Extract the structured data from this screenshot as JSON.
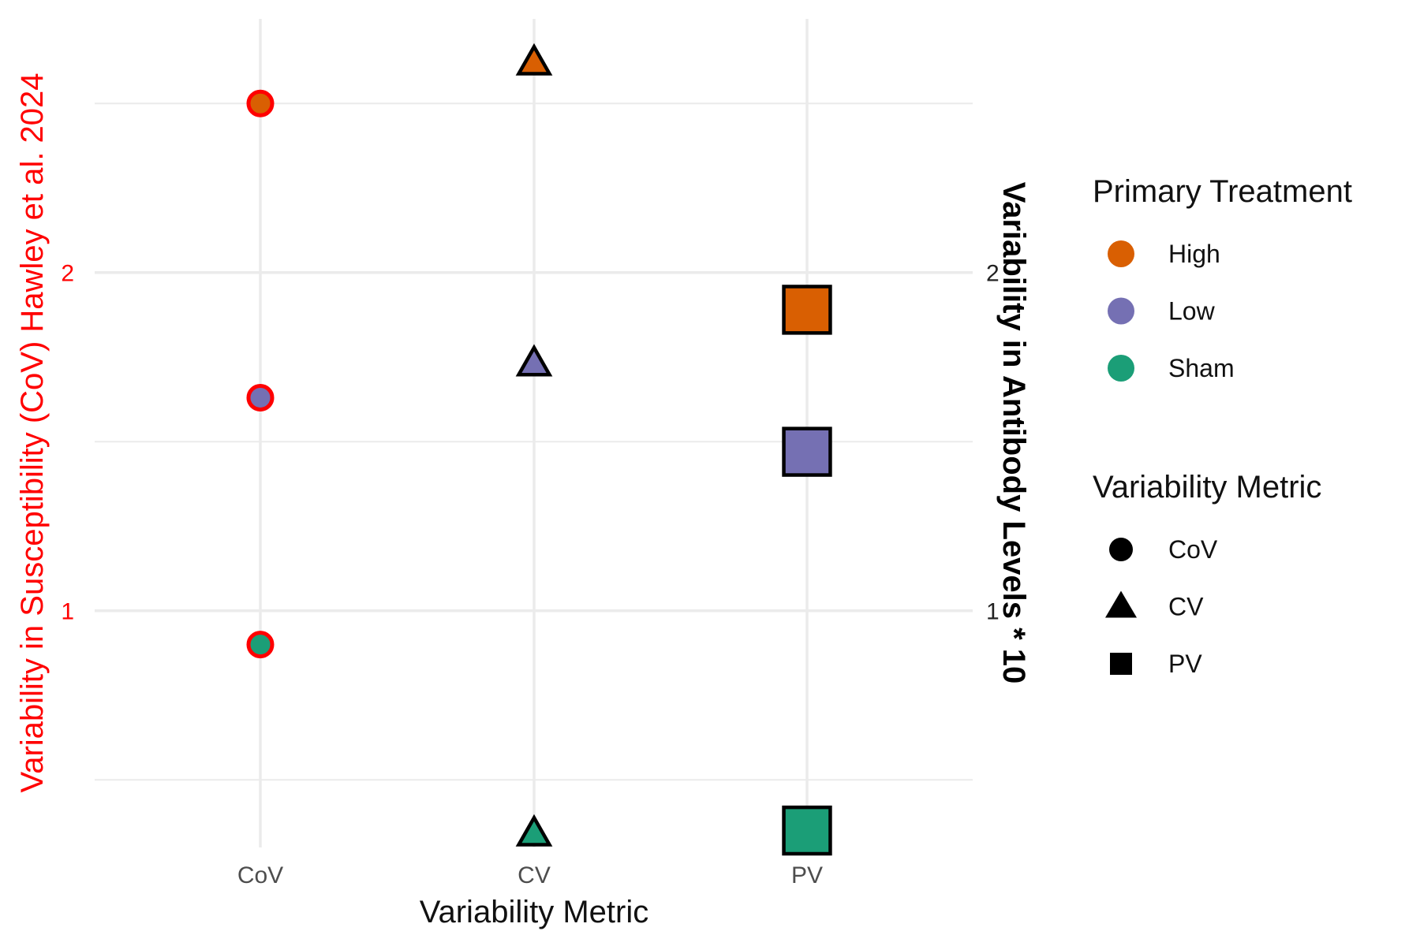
{
  "chart_data": {
    "type": "scatter",
    "categories": [
      "CoV",
      "CV",
      "PV"
    ],
    "xlabel": "Variability Metric",
    "ylabel_left": "Variability in Susceptibility (CoV) Hawley et al. 2024",
    "ylabel_right": "Variability in Antibody Levels * 10",
    "ylim": [
      0.3,
      2.75
    ],
    "y_ticks": [
      1,
      2
    ],
    "y_tick_labels": [
      "1",
      "2"
    ],
    "grid": true,
    "legend_placement": "right",
    "colors": {
      "High": "#D95F02",
      "Low": "#7570B3",
      "Sham": "#1B9E77",
      "left_axis": "#FF0000",
      "point_outline": "#000000",
      "cov_outline": "#FF0000",
      "gridline": "#EBEBEB"
    },
    "series": [
      {
        "name": "High",
        "values": [
          2.5,
          2.62,
          1.89
        ]
      },
      {
        "name": "Low",
        "values": [
          1.63,
          1.73,
          1.47
        ]
      },
      {
        "name": "Sham",
        "values": [
          0.9,
          0.34,
          0.35
        ]
      }
    ],
    "shapes": {
      "CoV": "circle",
      "CV": "triangle",
      "PV": "square"
    },
    "legend": {
      "treatment_title": "Primary Treatment",
      "treatment_items": [
        "High",
        "Low",
        "Sham"
      ],
      "metric_title": "Variability Metric",
      "metric_items": [
        "CoV",
        "CV",
        "PV"
      ]
    }
  }
}
